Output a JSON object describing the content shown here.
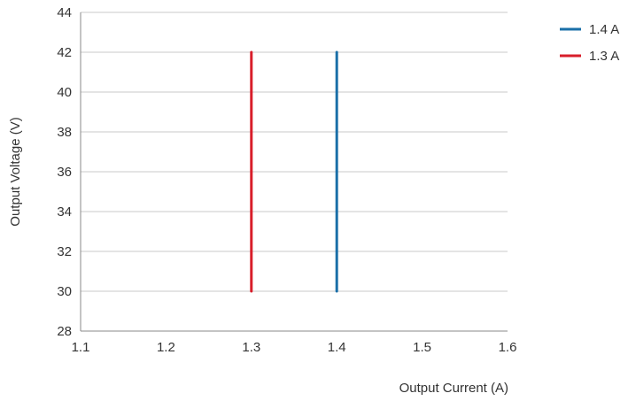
{
  "chart_data": {
    "type": "line",
    "title": "",
    "xlabel": "Output Current (A)",
    "ylabel": "Output Voltage (V)",
    "xlim": [
      1.1,
      1.6
    ],
    "ylim": [
      28,
      44
    ],
    "x_ticks": [
      "1.1",
      "1.2",
      "1.3",
      "1.4",
      "1.5",
      "1.6"
    ],
    "y_ticks": [
      "28",
      "30",
      "32",
      "34",
      "36",
      "38",
      "40",
      "42",
      "44"
    ],
    "grid": "horizontal",
    "legend_position": "top-right",
    "series": [
      {
        "name": "1.4 A",
        "color": "#1a6fa8",
        "points": [
          [
            1.4,
            30
          ],
          [
            1.4,
            42
          ]
        ]
      },
      {
        "name": "1.3 A",
        "color": "#d81e2a",
        "points": [
          [
            1.3,
            30
          ],
          [
            1.3,
            42
          ]
        ]
      }
    ]
  }
}
